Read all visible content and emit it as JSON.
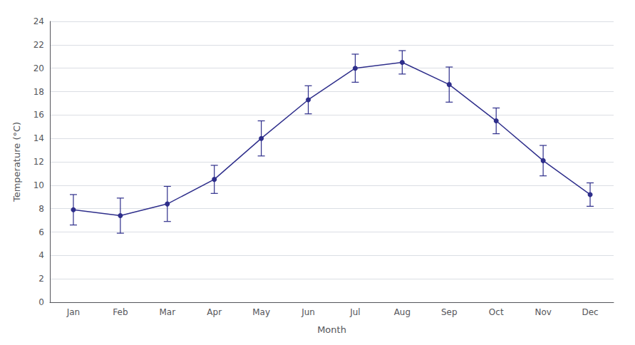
{
  "chart_data": {
    "type": "line",
    "xlabel": "Month",
    "ylabel": "Temperature (°C)",
    "categories": [
      "Jan",
      "Feb",
      "Mar",
      "Apr",
      "May",
      "Jun",
      "Jul",
      "Aug",
      "Sep",
      "Oct",
      "Nov",
      "Dec"
    ],
    "values": [
      7.9,
      7.4,
      8.4,
      10.5,
      14.0,
      17.3,
      20.0,
      20.5,
      18.6,
      15.5,
      12.1,
      9.2
    ],
    "errors": [
      1.3,
      1.5,
      1.5,
      1.2,
      1.5,
      1.2,
      1.2,
      1.0,
      1.5,
      1.1,
      1.3,
      1.0
    ],
    "color": "#2e2e8b",
    "marker": "circle",
    "line_style": "solid",
    "ylim": [
      0,
      24
    ],
    "yticks": [
      0,
      2,
      4,
      6,
      8,
      10,
      12,
      14,
      16,
      18,
      20,
      22,
      24
    ],
    "grid": true
  }
}
